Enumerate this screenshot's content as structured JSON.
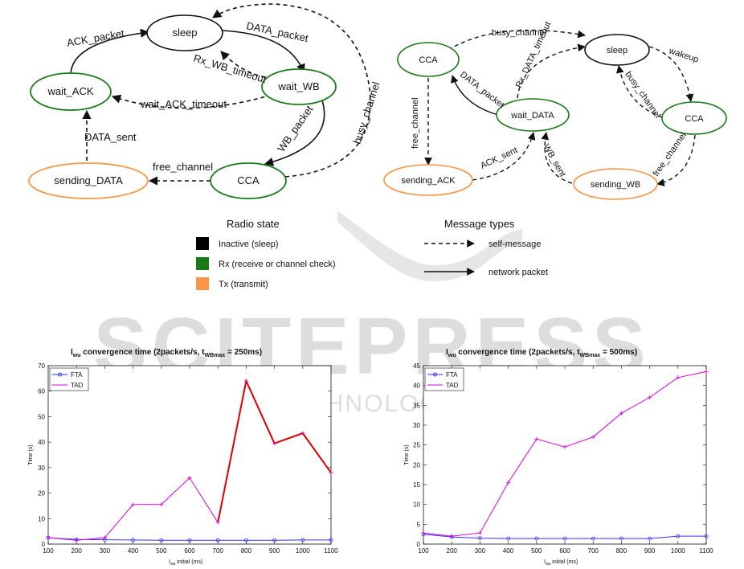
{
  "left_diagram": {
    "states": {
      "sleep": "sleep",
      "wait_ack": "wait_ACK",
      "wait_wb": "wait_WB",
      "sending_data": "sending_DATA",
      "cca": "CCA"
    },
    "transitions": {
      "ack_packet": "ACK_packet",
      "data_packet": "DATA_packet",
      "rx_wb_timeout": "Rx_WB_timeout",
      "wait_ack_timeout": "wait_ACK_timeout",
      "busy_channel": "busy_channel",
      "wb_packet": "WB_packet",
      "data_sent": "DATA_sent",
      "free_channel": "free_channel"
    }
  },
  "right_diagram": {
    "states": {
      "cca_left": "CCA",
      "sleep": "sleep",
      "wait_data": "wait_DATA",
      "cca_right": "CCA",
      "sending_ack": "sending_ACK",
      "sending_wb": "sending_WB"
    },
    "transitions": {
      "busy_channel_top": "busy_channel",
      "rx_data_timeout": "Rx_DATA_timeout",
      "data_packet": "DATA_packet",
      "wakeup": "wakeup",
      "busy_channel_right": "busy_channel",
      "free_channel_left": "free_channel",
      "ack_sent": "ACK_sent",
      "wb_sent": "WB_sent",
      "free_channel_right": "free_channel"
    }
  },
  "legend": {
    "radio_title": "Radio state",
    "inactive": "Inactive (sleep)",
    "rx": "Rx (receive or channel check)",
    "tx": "Tx (transmit)",
    "msg_title": "Message types",
    "self_message": "self-message",
    "network_packet": "network packet",
    "colors": {
      "inactive": "#000000",
      "rx": "#1a7a1a",
      "tx": "#f79646"
    }
  },
  "watermark": {
    "main": "SCITEPRESS",
    "sub": "SCIENCE AND TECHNOLOGY PUBLICATIONS"
  },
  "chart_data": [
    {
      "type": "line",
      "title_main": "I",
      "title_sub1": "wu",
      "title_mid": " convergence time (2packets/s, t",
      "title_sub2": "WBmax",
      "title_end": " = 250ms)",
      "xlabel_main": "I",
      "xlabel_sub": "wu",
      "xlabel_end": " initial (ms)",
      "ylabel": "Time (s)",
      "x": [
        100,
        200,
        300,
        400,
        500,
        600,
        700,
        800,
        900,
        1000,
        1100
      ],
      "xticks": [
        "100",
        "200",
        "300",
        "400",
        "500",
        "600",
        "700",
        "800",
        "900",
        "1000",
        "1100"
      ],
      "yticks": [
        "0",
        "10",
        "20",
        "30",
        "40",
        "50",
        "60",
        "70"
      ],
      "xlim": [
        100,
        1100
      ],
      "ylim": [
        0,
        70
      ],
      "series": [
        {
          "name": "FTA",
          "color": "#3333ff",
          "marker": "circle",
          "values": [
            2.5,
            1.8,
            1.7,
            1.6,
            1.5,
            1.5,
            1.5,
            1.5,
            1.5,
            1.6,
            1.6
          ]
        },
        {
          "name": "TAD",
          "color": "#dd00dd",
          "marker": "plus",
          "values": [
            2.5,
            1.5,
            2.5,
            15.5,
            15.5,
            26,
            8.5,
            64,
            39.5,
            43.5,
            28
          ]
        }
      ],
      "highlight": {
        "from_index": 6,
        "color": "#dd0000"
      }
    },
    {
      "type": "line",
      "title_main": "I",
      "title_sub1": "wu",
      "title_mid": " convergence time (2packets/s, t",
      "title_sub2": "WBmax",
      "title_end": " = 500ms)",
      "xlabel_main": "I",
      "xlabel_sub": "wu",
      "xlabel_end": " initial (ms)",
      "ylabel": "Time (s)",
      "x": [
        100,
        200,
        300,
        400,
        500,
        600,
        700,
        800,
        900,
        1000,
        1100
      ],
      "xticks": [
        "100",
        "200",
        "300",
        "400",
        "500",
        "600",
        "700",
        "800",
        "900",
        "1000",
        "1100"
      ],
      "yticks": [
        "0",
        "5",
        "10",
        "15",
        "20",
        "25",
        "30",
        "35",
        "40",
        "45"
      ],
      "xlim": [
        100,
        1100
      ],
      "ylim": [
        0,
        45
      ],
      "series": [
        {
          "name": "FTA",
          "color": "#3333ff",
          "marker": "circle",
          "values": [
            2.5,
            1.8,
            1.5,
            1.4,
            1.4,
            1.4,
            1.4,
            1.4,
            1.4,
            2.0,
            2.0
          ]
        },
        {
          "name": "TAD",
          "color": "#dd00dd",
          "marker": "plus",
          "values": [
            2.8,
            2.0,
            2.8,
            15.5,
            26.5,
            24.5,
            27,
            33,
            37,
            42,
            43.5
          ]
        }
      ]
    }
  ]
}
